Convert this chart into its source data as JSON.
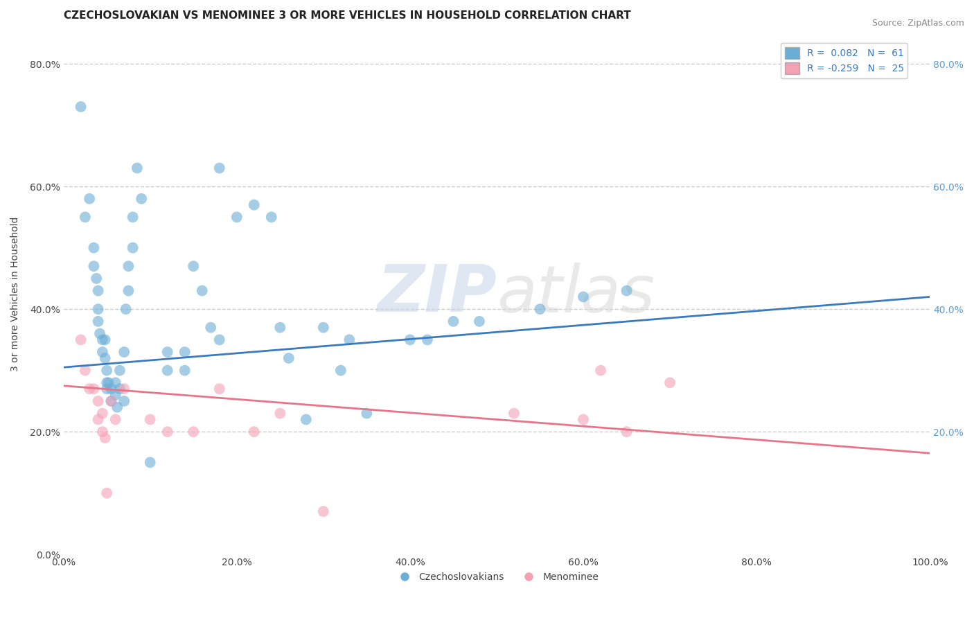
{
  "title": "CZECHOSLOVAKIAN VS MENOMINEE 3 OR MORE VEHICLES IN HOUSEHOLD CORRELATION CHART",
  "source": "Source: ZipAtlas.com",
  "ylabel": "3 or more Vehicles in Household",
  "xlabel": "",
  "legend_entries": [
    {
      "label": "R =  0.082   N =  61",
      "color": "#a8c4e0"
    },
    {
      "label": "R = -0.259   N =  25",
      "color": "#f4a7b9"
    }
  ],
  "legend_labels": [
    "Czechoslovakians",
    "Menominee"
  ],
  "xlim": [
    0.0,
    1.0
  ],
  "ylim": [
    0.0,
    0.85
  ],
  "xticks": [
    0.0,
    0.2,
    0.4,
    0.6,
    0.8,
    1.0
  ],
  "xtick_labels": [
    "0.0%",
    "20.0%",
    "40.0%",
    "60.0%",
    "80.0%",
    "100.0%"
  ],
  "yticks": [
    0.0,
    0.2,
    0.4,
    0.6,
    0.8
  ],
  "ytick_labels": [
    "0.0%",
    "20.0%",
    "40.0%",
    "60.0%",
    "80.0%"
  ],
  "right_yticks": [
    0.2,
    0.4,
    0.6,
    0.8
  ],
  "right_ytick_labels": [
    "20.0%",
    "40.0%",
    "60.0%",
    "80.0%"
  ],
  "blue_color": "#6aaed6",
  "pink_color": "#f4a0b5",
  "blue_line_color": "#3a7abf",
  "pink_line_color": "#e8748a",
  "blue_scatter": [
    [
      0.02,
      0.73
    ],
    [
      0.025,
      0.55
    ],
    [
      0.03,
      0.58
    ],
    [
      0.035,
      0.5
    ],
    [
      0.035,
      0.47
    ],
    [
      0.038,
      0.45
    ],
    [
      0.04,
      0.43
    ],
    [
      0.04,
      0.4
    ],
    [
      0.04,
      0.38
    ],
    [
      0.042,
      0.36
    ],
    [
      0.045,
      0.35
    ],
    [
      0.045,
      0.33
    ],
    [
      0.048,
      0.35
    ],
    [
      0.048,
      0.32
    ],
    [
      0.05,
      0.3
    ],
    [
      0.05,
      0.28
    ],
    [
      0.05,
      0.27
    ],
    [
      0.052,
      0.28
    ],
    [
      0.055,
      0.27
    ],
    [
      0.055,
      0.25
    ],
    [
      0.06,
      0.28
    ],
    [
      0.06,
      0.26
    ],
    [
      0.062,
      0.24
    ],
    [
      0.065,
      0.3
    ],
    [
      0.065,
      0.27
    ],
    [
      0.07,
      0.25
    ],
    [
      0.07,
      0.33
    ],
    [
      0.072,
      0.4
    ],
    [
      0.075,
      0.47
    ],
    [
      0.075,
      0.43
    ],
    [
      0.08,
      0.5
    ],
    [
      0.08,
      0.55
    ],
    [
      0.085,
      0.63
    ],
    [
      0.09,
      0.58
    ],
    [
      0.1,
      0.15
    ],
    [
      0.12,
      0.33
    ],
    [
      0.12,
      0.3
    ],
    [
      0.14,
      0.33
    ],
    [
      0.14,
      0.3
    ],
    [
      0.15,
      0.47
    ],
    [
      0.16,
      0.43
    ],
    [
      0.17,
      0.37
    ],
    [
      0.18,
      0.35
    ],
    [
      0.18,
      0.63
    ],
    [
      0.2,
      0.55
    ],
    [
      0.22,
      0.57
    ],
    [
      0.24,
      0.55
    ],
    [
      0.25,
      0.37
    ],
    [
      0.26,
      0.32
    ],
    [
      0.28,
      0.22
    ],
    [
      0.3,
      0.37
    ],
    [
      0.32,
      0.3
    ],
    [
      0.33,
      0.35
    ],
    [
      0.35,
      0.23
    ],
    [
      0.4,
      0.35
    ],
    [
      0.42,
      0.35
    ],
    [
      0.45,
      0.38
    ],
    [
      0.48,
      0.38
    ],
    [
      0.55,
      0.4
    ],
    [
      0.6,
      0.42
    ],
    [
      0.65,
      0.43
    ]
  ],
  "pink_scatter": [
    [
      0.02,
      0.35
    ],
    [
      0.025,
      0.3
    ],
    [
      0.03,
      0.27
    ],
    [
      0.035,
      0.27
    ],
    [
      0.04,
      0.25
    ],
    [
      0.04,
      0.22
    ],
    [
      0.045,
      0.23
    ],
    [
      0.045,
      0.2
    ],
    [
      0.048,
      0.19
    ],
    [
      0.05,
      0.1
    ],
    [
      0.055,
      0.25
    ],
    [
      0.06,
      0.22
    ],
    [
      0.07,
      0.27
    ],
    [
      0.1,
      0.22
    ],
    [
      0.12,
      0.2
    ],
    [
      0.15,
      0.2
    ],
    [
      0.18,
      0.27
    ],
    [
      0.22,
      0.2
    ],
    [
      0.25,
      0.23
    ],
    [
      0.3,
      0.07
    ],
    [
      0.52,
      0.23
    ],
    [
      0.6,
      0.22
    ],
    [
      0.62,
      0.3
    ],
    [
      0.65,
      0.2
    ],
    [
      0.7,
      0.28
    ]
  ],
  "blue_line_x": [
    0.0,
    1.0
  ],
  "blue_line_y": [
    0.305,
    0.42
  ],
  "pink_line_x": [
    0.0,
    1.0
  ],
  "pink_line_y": [
    0.275,
    0.165
  ],
  "watermark_zip": "ZIP",
  "watermark_atlas": "atlas",
  "background_color": "#ffffff",
  "grid_color": "#cccccc",
  "title_fontsize": 11,
  "axis_fontsize": 10,
  "tick_fontsize": 10,
  "source_fontsize": 9
}
